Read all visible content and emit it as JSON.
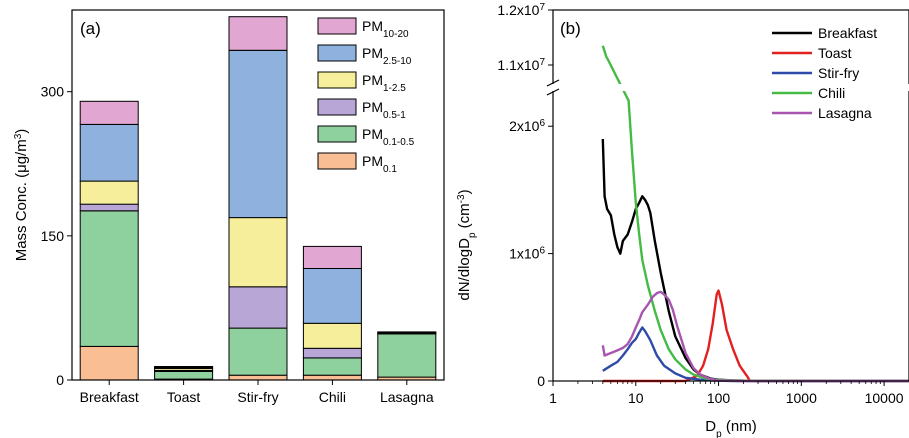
{
  "chart_data": [
    {
      "type": "bar",
      "stacked": true,
      "panel_label": "(a)",
      "ylabel": "Mass Conc. (μg/m³)",
      "ylabel_parts": {
        "main": "Mass Conc. (μg/m",
        "sup": "3",
        "end": ")"
      },
      "categories": [
        "Breakfast",
        "Toast",
        "Stir-fry",
        "Chili",
        "Lasagna"
      ],
      "yticks": [
        0,
        150,
        300
      ],
      "ylim": [
        0,
        385
      ],
      "legend_position": "top-right",
      "series": [
        {
          "name": "PM0.1",
          "base": "PM",
          "sub": "0.1",
          "color": "#f9be94",
          "values": [
            35,
            1,
            5,
            5,
            3
          ]
        },
        {
          "name": "PM0.1-0.5",
          "base": "PM",
          "sub": "0.1-0.5",
          "color": "#8fd19e",
          "values": [
            141,
            8,
            49,
            18,
            45
          ]
        },
        {
          "name": "PM0.5-1",
          "base": "PM",
          "sub": "0.5-1",
          "color": "#b8a6d6",
          "values": [
            7,
            1,
            43,
            10,
            1
          ]
        },
        {
          "name": "PM1-2.5",
          "base": "PM",
          "sub": "1-2.5",
          "color": "#f6ee9b",
          "values": [
            24,
            2,
            72,
            26,
            0.5
          ]
        },
        {
          "name": "PM2.5-10",
          "base": "PM",
          "sub": "2.5-10",
          "color": "#8eb2dd",
          "values": [
            59,
            1,
            174,
            57,
            0.5
          ]
        },
        {
          "name": "PM10-20",
          "base": "PM",
          "sub": "10-20",
          "color": "#e2a6d3",
          "values": [
            24,
            1,
            35,
            23,
            0
          ]
        }
      ]
    },
    {
      "type": "line",
      "panel_label": "(b)",
      "xlabel": "Dp (nm)",
      "xlabel_parts": {
        "main": "D",
        "sub": "p",
        "end": " (nm)"
      },
      "ylabel": "dN/dlogDp (cm⁻³)",
      "ylabel_parts": {
        "main": "dN/dlogD",
        "sub": "p",
        "mid": " (cm",
        "sup": "-3",
        "end": ")"
      },
      "x_scale": "log",
      "xlim": [
        1,
        20000
      ],
      "xticks": [
        1,
        10,
        100,
        1000,
        10000
      ],
      "xtick_labels": [
        "1",
        "10",
        "100",
        "1000",
        "10000"
      ],
      "y_axis_break": true,
      "ylim_lower": [
        0,
        2300000
      ],
      "ylim_upper": [
        10600000,
        12000000
      ],
      "yticks": [
        {
          "value": 0,
          "label": "0"
        },
        {
          "value": 1000000,
          "base": "1x10",
          "sup": "6"
        },
        {
          "value": 2000000,
          "base": "2x10",
          "sup": "6"
        },
        {
          "value": 11000000,
          "base": "1.1x10",
          "sup": "7"
        },
        {
          "value": 12000000,
          "base": "1.2x10",
          "sup": "7"
        }
      ],
      "legend_position": "top-right",
      "series": [
        {
          "name": "Breakfast",
          "color": "#000000",
          "x": [
            4,
            4.2,
            4.5,
            5,
            5.5,
            6,
            6.5,
            7,
            8,
            9,
            10,
            11,
            12,
            13,
            14,
            15,
            17,
            20,
            25,
            30,
            40,
            50,
            60,
            80,
            100,
            150,
            300,
            1000,
            20000
          ],
          "y": [
            1900000,
            1450000,
            1350000,
            1300000,
            1150000,
            1050000,
            1000000,
            1100000,
            1150000,
            1250000,
            1350000,
            1400000,
            1450000,
            1420000,
            1380000,
            1320000,
            1100000,
            850000,
            550000,
            350000,
            180000,
            90000,
            50000,
            20000,
            10000,
            5000,
            0,
            0,
            0
          ]
        },
        {
          "name": "Toast",
          "color": "#e32020",
          "x": [
            4,
            20,
            40,
            55,
            65,
            75,
            85,
            95,
            100,
            110,
            125,
            150,
            180,
            220,
            240
          ],
          "y": [
            0,
            0,
            0,
            40000,
            120000,
            250000,
            450000,
            680000,
            710000,
            600000,
            400000,
            250000,
            120000,
            40000,
            0
          ]
        },
        {
          "name": "Stir-fry",
          "color": "#2f4aa8",
          "x": [
            4,
            5,
            6,
            7,
            8,
            9,
            10,
            11,
            12,
            13,
            15,
            18,
            22,
            30,
            40,
            60,
            80,
            150,
            20000
          ],
          "y": [
            80000,
            120000,
            150000,
            200000,
            250000,
            300000,
            330000,
            380000,
            420000,
            390000,
            320000,
            200000,
            120000,
            60000,
            25000,
            10000,
            5000,
            0,
            0
          ]
        },
        {
          "name": "Chili",
          "color": "#44bb44",
          "x": [
            4,
            4.4,
            4.6,
            8.2,
            9,
            10,
            11,
            12,
            14,
            17,
            20,
            25,
            30,
            40,
            50,
            70,
            100,
            200,
            20000
          ],
          "y": [
            11350000,
            11150000,
            11100000,
            2200000,
            1800000,
            1400000,
            1150000,
            950000,
            750000,
            550000,
            400000,
            250000,
            170000,
            90000,
            50000,
            20000,
            8000,
            2000,
            0
          ]
        },
        {
          "name": "Lasagna",
          "color": "#a855b0",
          "x": [
            4,
            4.2,
            5,
            6,
            7,
            8,
            9,
            10,
            11,
            12,
            14,
            16,
            18,
            20,
            22,
            25,
            28,
            32,
            40,
            50,
            60,
            80,
            100,
            200,
            20000
          ],
          "y": [
            280000,
            200000,
            220000,
            240000,
            260000,
            290000,
            350000,
            420000,
            480000,
            540000,
            600000,
            660000,
            690000,
            700000,
            680000,
            640000,
            560000,
            420000,
            220000,
            100000,
            50000,
            15000,
            5000,
            0,
            0
          ]
        }
      ]
    }
  ]
}
